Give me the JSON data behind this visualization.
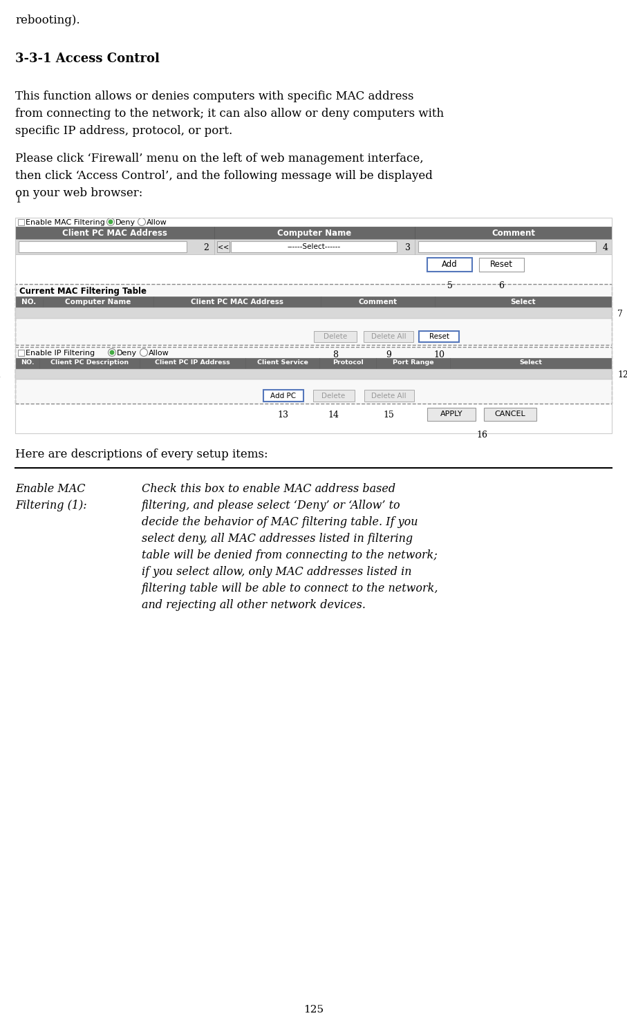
{
  "page_num": "125",
  "intro_text": "rebooting).",
  "section_title": "3-3-1 Access Control",
  "para1_lines": [
    "This function allows or denies computers with specific MAC address",
    "from connecting to the network; it can also allow or deny computers with",
    "specific IP address, protocol, or port."
  ],
  "para2_lines": [
    "Please click ‘Firewall’ menu on the left of web management interface,",
    "then click ‘Access Control’, and the following message will be displayed",
    "on your web browser:"
  ],
  "desc_title": "Here are descriptions of every setup items:",
  "desc_left_line1": "Enable MAC",
  "desc_left_line2": "Filtering (1):",
  "desc_right_lines": [
    "Check this box to enable MAC address based",
    "filtering, and please select ‘Deny’ or ‘Allow’ to",
    "decide the behavior of MAC filtering table. If you",
    "select deny, all MAC addresses listed in filtering",
    "table will be denied from connecting to the network;",
    "if you select allow, only MAC addresses listed in",
    "filtering table will be able to connect to the network,",
    "and rejecting all other network devices."
  ],
  "table_header_color": "#686868",
  "button_border_blue": "#5577bb",
  "bg_color": "#ffffff",
  "screen_bg": "#f0f0f0",
  "dashed_border": "#888888"
}
